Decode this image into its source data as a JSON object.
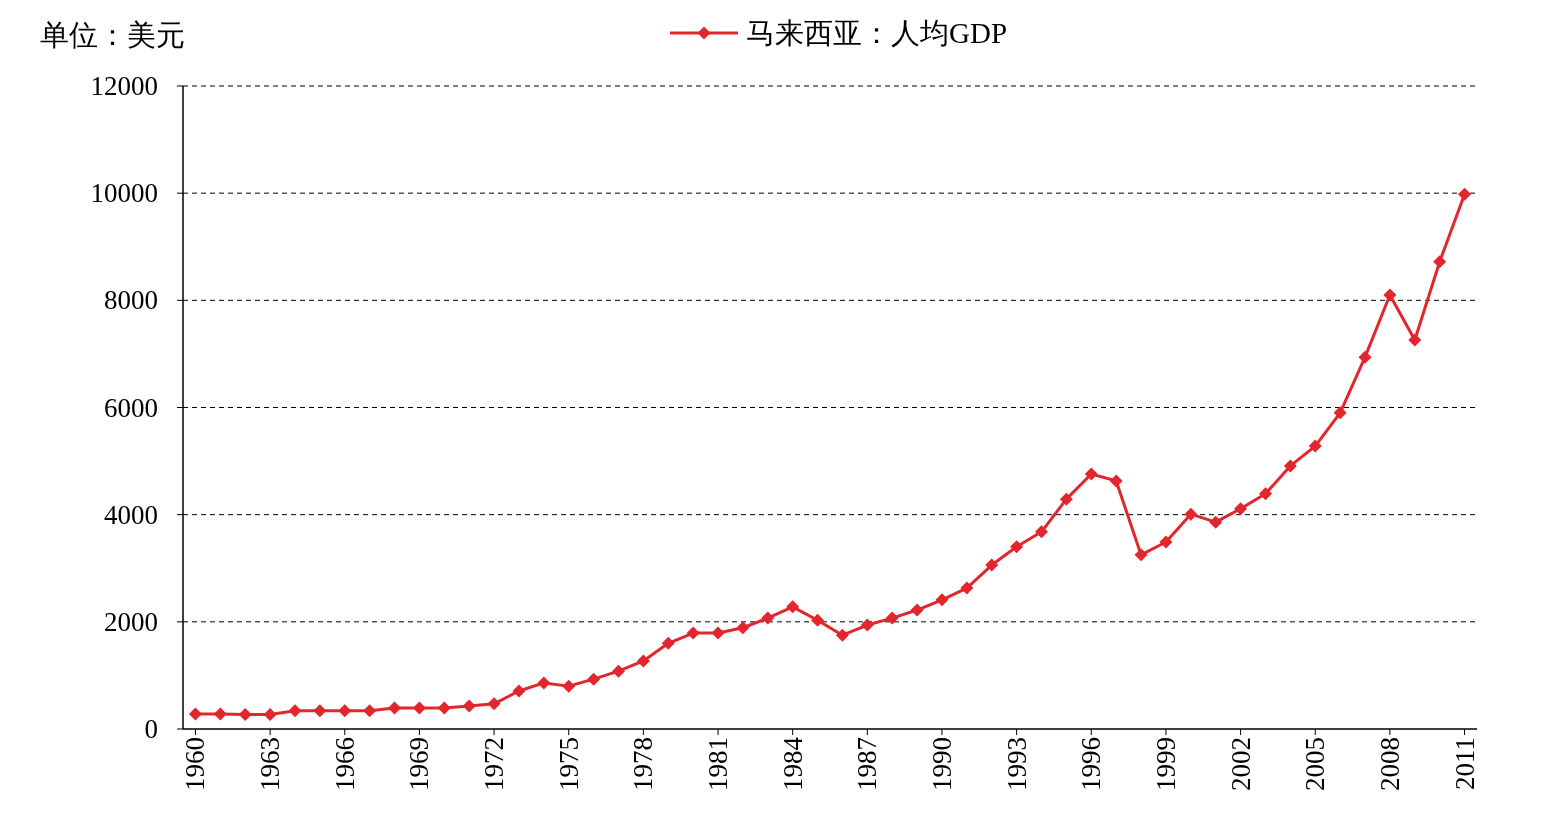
{
  "chart_data": {
    "type": "line",
    "annotations": [
      "单位：美元"
    ],
    "categories": [
      "1960",
      null,
      null,
      "1963",
      null,
      null,
      "1966",
      null,
      null,
      "1969",
      null,
      null,
      "1972",
      null,
      null,
      "1975",
      null,
      null,
      "1978",
      null,
      null,
      "1981",
      null,
      null,
      "1984",
      null,
      null,
      "1987",
      null,
      null,
      "1990",
      null,
      null,
      "1993",
      null,
      null,
      "1996",
      null,
      null,
      "1999",
      null,
      null,
      "2002",
      null,
      null,
      "2005",
      null,
      null,
      "2008",
      null,
      null,
      "2011"
    ],
    "series": [
      {
        "name": "马来西亚：人均GDP",
        "color": "#e3262d",
        "values": [
          280,
          280,
          270,
          270,
          340,
          340,
          340,
          340,
          390,
          390,
          390,
          430,
          470,
          710,
          860,
          800,
          930,
          1080,
          1270,
          1600,
          1790,
          1790,
          1890,
          2070,
          2280,
          2030,
          1750,
          1940,
          2070,
          2220,
          2410,
          2630,
          3060,
          3400,
          3680,
          4290,
          4760,
          4630,
          3250,
          3490,
          4010,
          3860,
          4110,
          4390,
          4910,
          5280,
          5900,
          6940,
          8100,
          7260,
          8720,
          9980
        ]
      }
    ],
    "ylim": [
      0,
      12000
    ],
    "yticks": [
      0,
      2000,
      4000,
      6000,
      8000,
      10000,
      12000
    ],
    "grid": "y",
    "legend": "top",
    "marker": "diamond",
    "line_style": "solid"
  }
}
